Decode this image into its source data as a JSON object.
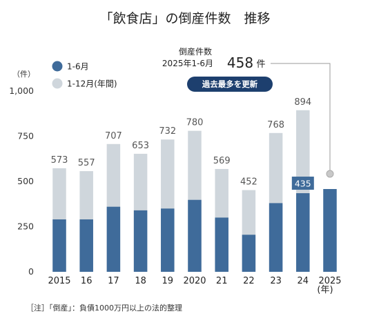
{
  "chart_data": {
    "type": "bar",
    "title": "「飲食店」の倒産件数　推移",
    "y_unit": "（件）",
    "x_unit": "(年)",
    "ylim": [
      0,
      1000
    ],
    "y_ticks": [
      "0",
      "250",
      "500",
      "750",
      "1,000"
    ],
    "categories": [
      "2015",
      "16",
      "17",
      "18",
      "19",
      "2020",
      "21",
      "22",
      "23",
      "24",
      "2025"
    ],
    "series": [
      {
        "name": "1-6月",
        "color": "#3f6b9a",
        "values": [
          290,
          290,
          360,
          340,
          350,
          398,
          300,
          205,
          380,
          435,
          458
        ]
      },
      {
        "name": "1-12月(年間)",
        "color": "#cfd6dc",
        "values": [
          573,
          557,
          707,
          653,
          732,
          780,
          569,
          452,
          768,
          894,
          null
        ]
      }
    ],
    "annotated_value": "435",
    "callout": {
      "label": "倒産件数",
      "period": "2025年1-6月",
      "value": "458",
      "unit": "件",
      "badge": "過去最多を更新"
    },
    "legend_position": "top-left",
    "grid": false
  },
  "footnote": "［注］「倒産」：負債1000万円以上の法的整理"
}
